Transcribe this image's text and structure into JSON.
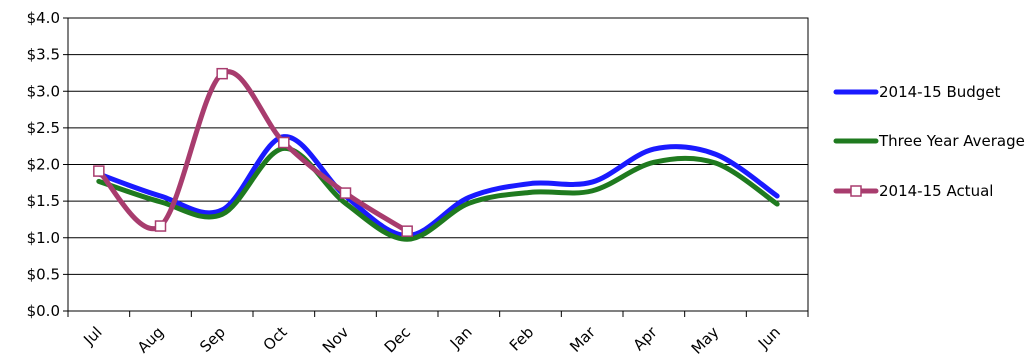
{
  "chart_data": {
    "type": "line",
    "title": "",
    "xlabel": "",
    "ylabel": "",
    "categories": [
      "Jul",
      "Aug",
      "Sep",
      "Oct",
      "Nov",
      "Dec",
      "Jan",
      "Feb",
      "Mar",
      "Apr",
      "May",
      "Jun"
    ],
    "ylim": [
      0,
      4
    ],
    "yticks": [
      "$0.0",
      "$0.5",
      "$1.0",
      "$1.5",
      "$2.0",
      "$2.5",
      "$3.0",
      "$3.5",
      "$4.0"
    ],
    "grid": true,
    "legend_position": "right",
    "series": [
      {
        "name": "2014-15 Budget",
        "color": "#1a1aff",
        "marker": "none",
        "values": [
          1.87,
          1.57,
          1.38,
          2.38,
          1.57,
          1.03,
          1.55,
          1.74,
          1.76,
          2.21,
          2.14,
          1.57
        ]
      },
      {
        "name": "Three Year Average",
        "color": "#1f7a1f",
        "marker": "none",
        "values": [
          1.77,
          1.49,
          1.32,
          2.22,
          1.47,
          0.98,
          1.47,
          1.62,
          1.64,
          2.03,
          2.02,
          1.46
        ]
      },
      {
        "name": "2014-15 Actual",
        "color": "#a83c6e",
        "marker": "square",
        "values": [
          1.91,
          1.16,
          3.24,
          2.3,
          1.61,
          1.09,
          null,
          null,
          null,
          null,
          null,
          null
        ]
      }
    ]
  }
}
